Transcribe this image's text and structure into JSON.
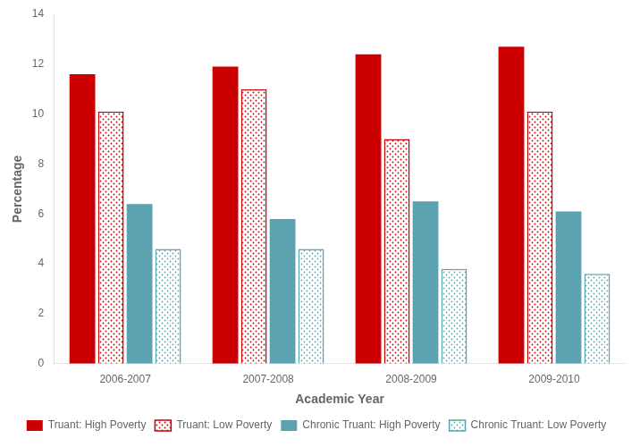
{
  "chart_data": {
    "type": "bar",
    "xlabel": "Academic Year",
    "ylabel": "Percentage",
    "categories": [
      "2006-2007",
      "2007-2008",
      "2008-2009",
      "2009-2010"
    ],
    "series": [
      {
        "name": "Truant: High Poverty",
        "color": "#cc0000",
        "values": [
          11.6,
          11.9,
          12.4,
          12.7
        ]
      },
      {
        "name": "Truant: Low Poverty",
        "color": "#cc0000",
        "values": [
          10.1,
          11.0,
          9.0,
          10.1
        ]
      },
      {
        "name": "Chronic Truant: High Poverty",
        "color": "#5ba3b0",
        "values": [
          6.4,
          5.8,
          6.5,
          6.1
        ]
      },
      {
        "name": "Chronic Truant: Low Poverty",
        "color": "#5ba3b0",
        "values": [
          4.6,
          4.6,
          3.8,
          3.6
        ]
      }
    ],
    "ylim": [
      0,
      14
    ],
    "yticks": [
      0,
      2,
      4,
      6,
      8,
      10,
      12,
      14
    ],
    "grid": false,
    "legend": "bottom"
  }
}
